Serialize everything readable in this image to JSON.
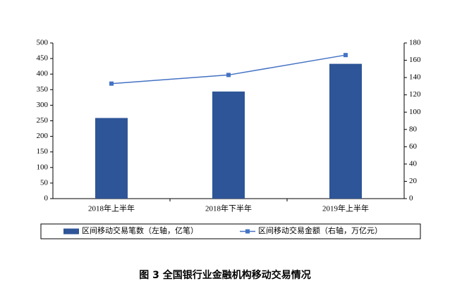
{
  "chart_data": {
    "type": "bar",
    "title": "图 3 全国银行业金融机构移动交易情况",
    "categories": [
      "2018年上半年",
      "2018年下半年",
      "2019年上半年"
    ],
    "series": [
      {
        "name": "区间移动交易笔数（左轴，亿笔）",
        "type": "bar",
        "color": "#2e5597",
        "values": [
          259,
          344,
          433
        ]
      },
      {
        "name": "区间移动交易金额（右轴，万亿元）",
        "type": "line",
        "axis": "y2",
        "color": "#4472c4",
        "values": [
          133,
          143,
          166
        ]
      }
    ],
    "ylim": [
      0,
      500
    ],
    "yticks": [
      0,
      50,
      100,
      150,
      200,
      250,
      300,
      350,
      400,
      450,
      500
    ],
    "y2lim": [
      0,
      180
    ],
    "y2ticks": [
      0,
      20,
      40,
      60,
      80,
      100,
      120,
      140,
      160,
      180
    ],
    "legend": "bottom"
  }
}
